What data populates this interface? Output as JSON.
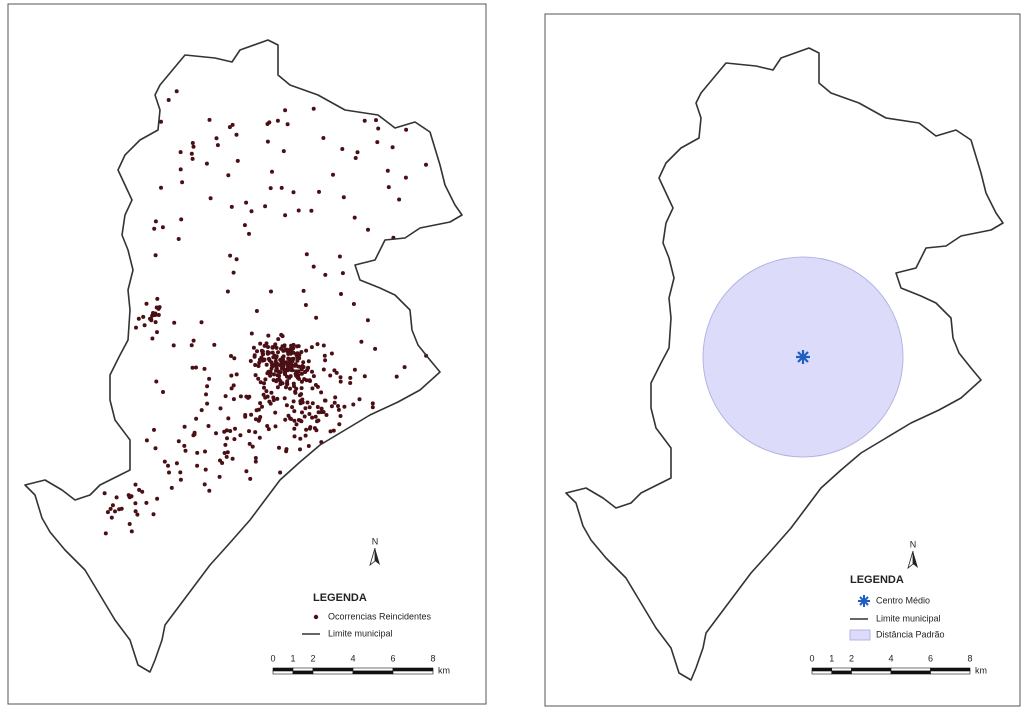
{
  "maps": [
    {
      "north": "N",
      "legend": {
        "title": "LEGENDA",
        "items": [
          "Ocorrencias Reincidentes",
          "Limite municipal"
        ]
      },
      "scale": {
        "ticks": [
          0,
          1,
          2,
          4,
          6,
          8
        ],
        "unit": "km"
      }
    },
    {
      "north": "N",
      "legend": {
        "title": "LEGENDA",
        "items": [
          "Centro Médio",
          "Limite municipal",
          "Distância Padrão"
        ]
      },
      "scale": {
        "ticks": [
          0,
          1,
          2,
          4,
          6,
          8
        ],
        "unit": "km"
      }
    }
  ]
}
